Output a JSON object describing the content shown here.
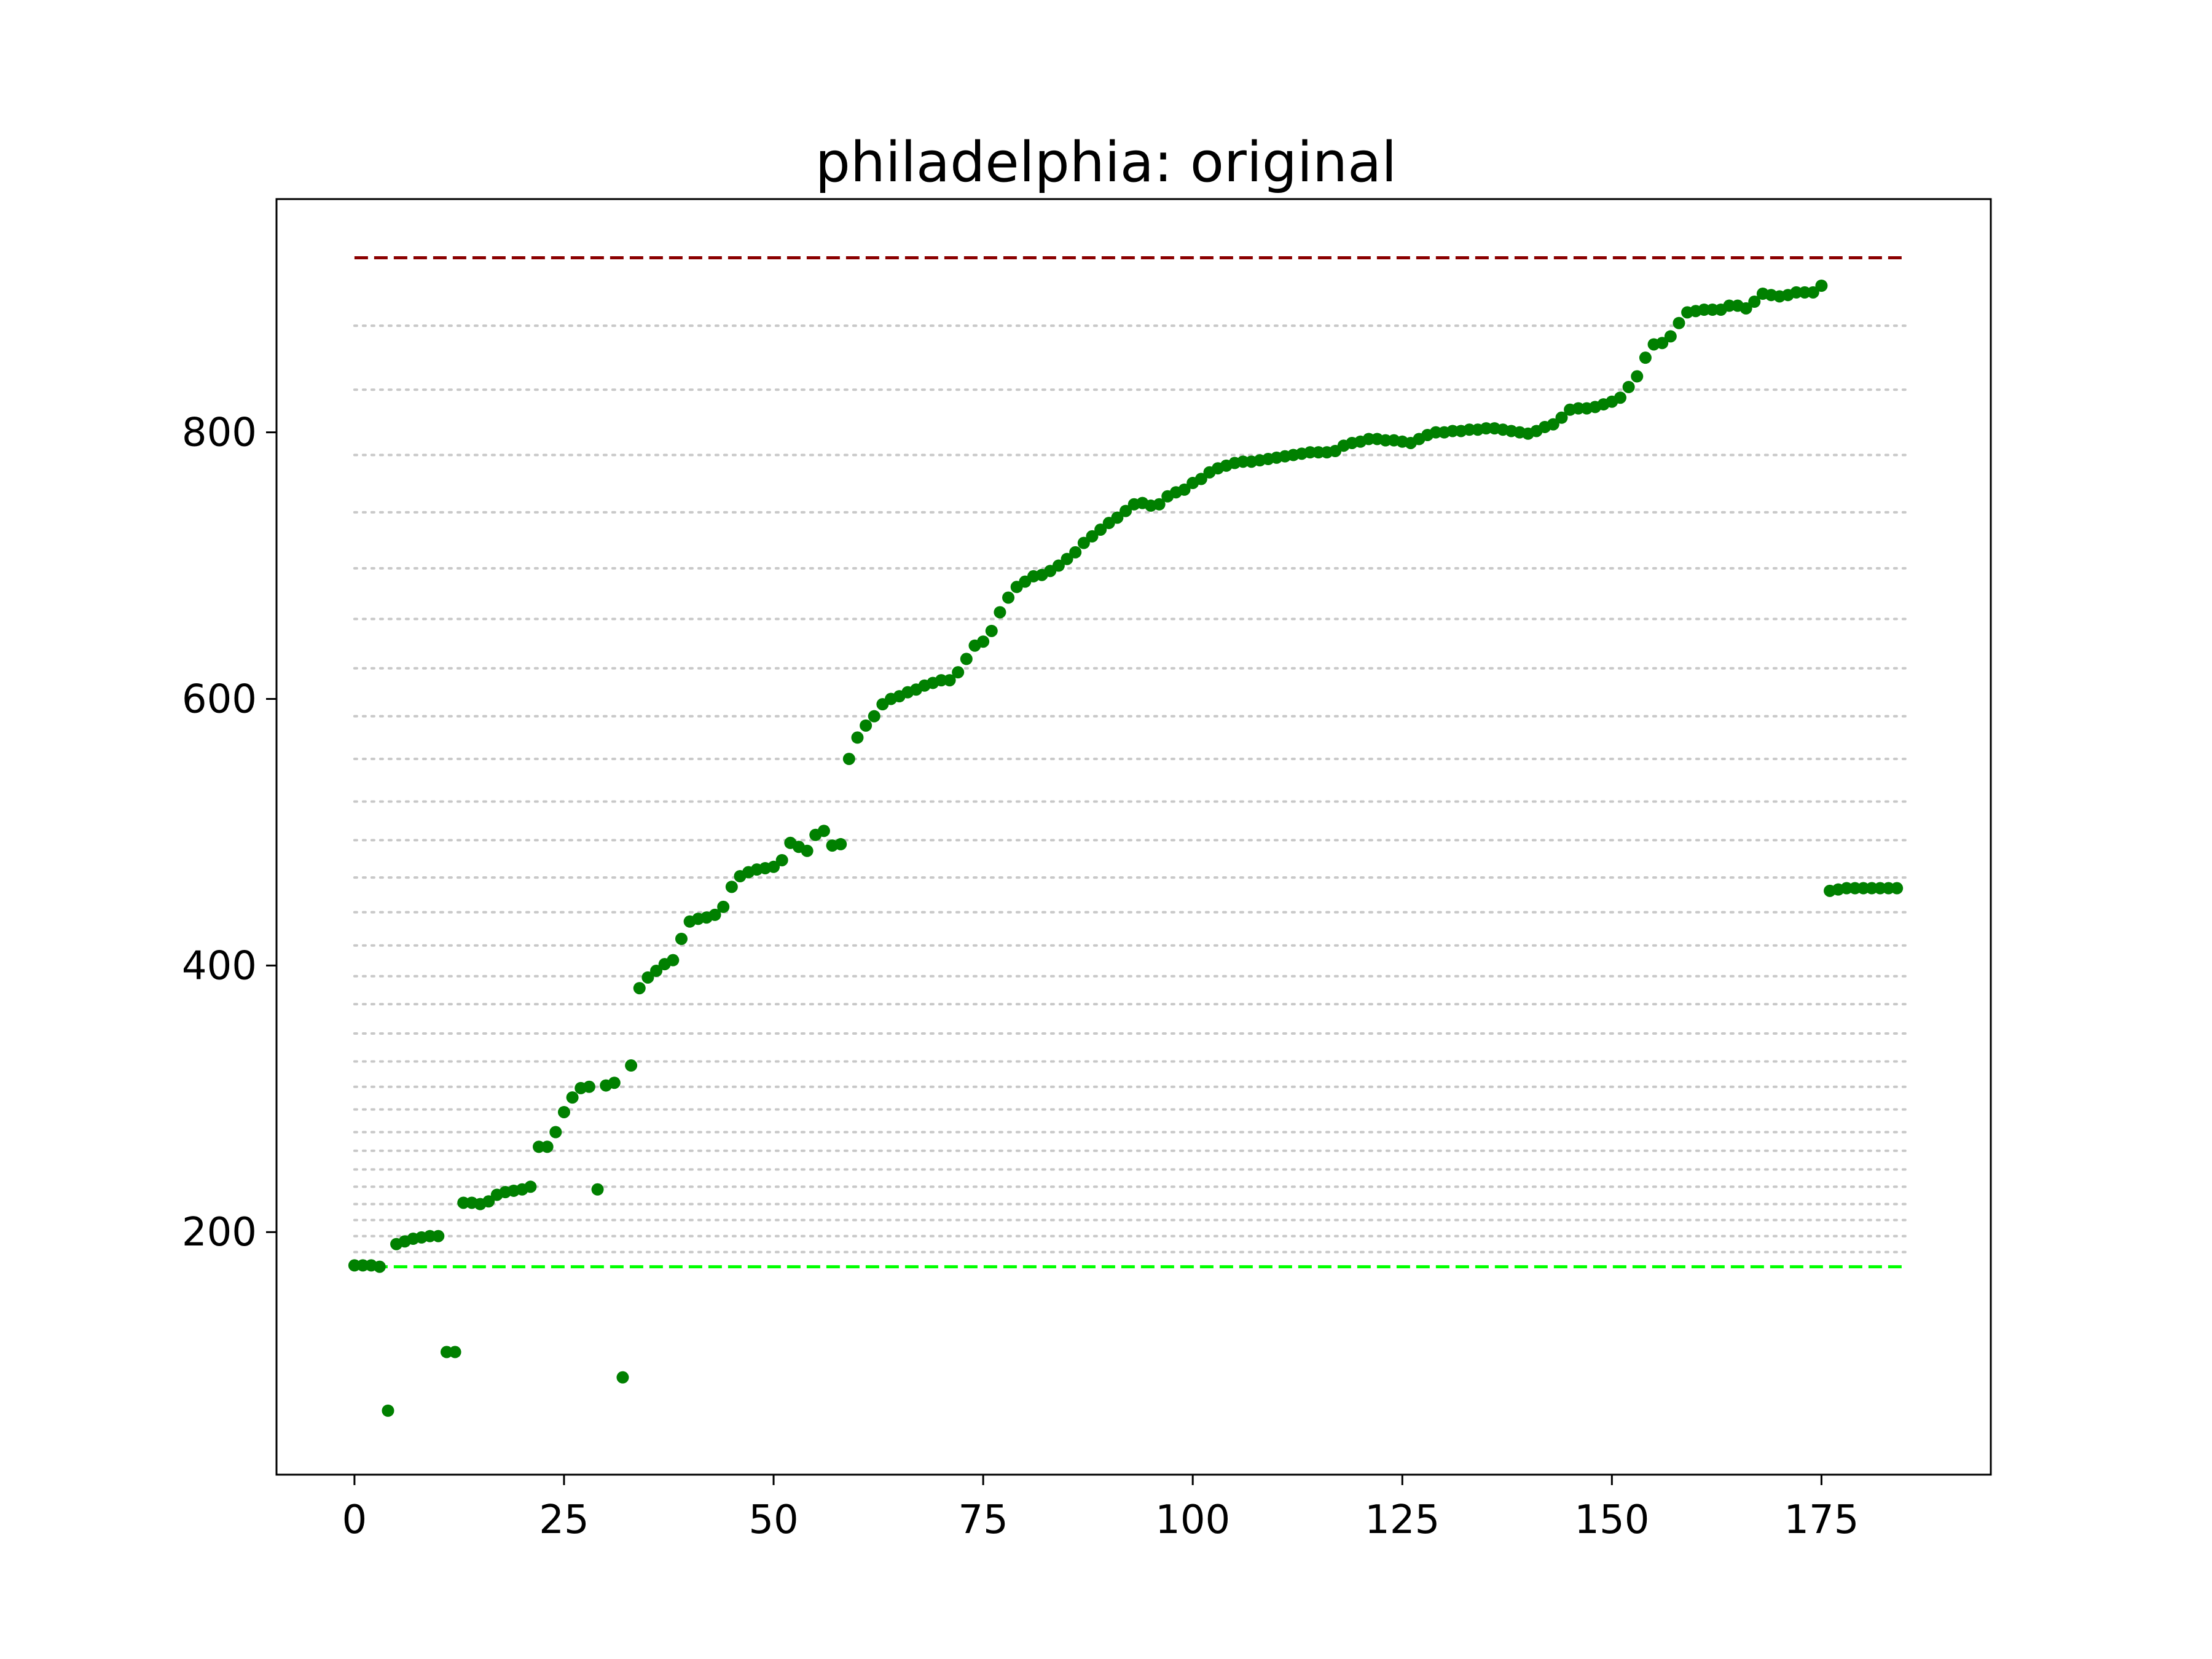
{
  "chart_data": {
    "type": "scatter",
    "title": "philadelphia: original",
    "xlabel": "",
    "ylabel": "",
    "xlim": [
      -9.3,
      195.2
    ],
    "ylim": [
      18,
      975
    ],
    "xticks": [
      0,
      25,
      50,
      75,
      100,
      125,
      150,
      175
    ],
    "yticks": [
      200,
      400,
      600,
      800
    ],
    "grid": false,
    "colors": {
      "points": "#008000",
      "upper_line": "#8b0000",
      "lower_line": "#00ff00",
      "guide_lines": "#c8c8c8"
    },
    "reference_lines": [
      {
        "kind": "upper",
        "y": 931,
        "x_range": [
          0,
          185
        ],
        "style": "dashed"
      },
      {
        "kind": "lower",
        "y": 174,
        "x_range": [
          0,
          185
        ],
        "style": "dashed"
      }
    ],
    "guide_lines": {
      "style": "dotted",
      "x_range": [
        0,
        185
      ],
      "y": [
        185,
        197,
        209,
        221,
        234,
        247,
        261,
        275,
        292,
        309,
        328,
        349,
        371,
        392,
        415,
        440,
        466,
        494,
        523,
        555,
        587,
        623,
        660,
        698,
        740,
        783,
        832,
        880
      ]
    },
    "series": [
      {
        "x": [
          0,
          1,
          2,
          3,
          4,
          5,
          6,
          7,
          8,
          9,
          10,
          11,
          12,
          13,
          14,
          15,
          16,
          17,
          18,
          19,
          20,
          21,
          22,
          23,
          24,
          25,
          26,
          27,
          28,
          29,
          30,
          31,
          32,
          33,
          34,
          35,
          36,
          37,
          38,
          39,
          40,
          41,
          42,
          43,
          44,
          45,
          46,
          47,
          48,
          49,
          50,
          51,
          52,
          53,
          54,
          55,
          56,
          57,
          58,
          59,
          60,
          61,
          62,
          63,
          64,
          65,
          66,
          67,
          68,
          69,
          70,
          71,
          72,
          73,
          74,
          75,
          76,
          77,
          78,
          79,
          80,
          81,
          82,
          83,
          84,
          85,
          86,
          87,
          88,
          89,
          90,
          91,
          92,
          93,
          94,
          95,
          96,
          97,
          98,
          99,
          100,
          101,
          102,
          103,
          104,
          105,
          106,
          107,
          108,
          109,
          110,
          111,
          112,
          113,
          114,
          115,
          116,
          117,
          118,
          119,
          120,
          121,
          122,
          123,
          124,
          125,
          126,
          127,
          128,
          129,
          130,
          131,
          132,
          133,
          134,
          135,
          136,
          137,
          138,
          139,
          140,
          141,
          142,
          143,
          144,
          145,
          146,
          147,
          148,
          149,
          150,
          151,
          152,
          153,
          154,
          155,
          156,
          157,
          158,
          159,
          160,
          161,
          162,
          163,
          164,
          165,
          166,
          167,
          168,
          169,
          170,
          171,
          172,
          173,
          174,
          175,
          176,
          177,
          178,
          179,
          180,
          181,
          182,
          183,
          184
        ],
        "y": [
          175,
          175,
          175,
          174,
          66,
          191,
          193,
          195,
          196,
          197,
          197,
          110,
          110,
          222,
          222,
          221,
          223,
          228,
          230,
          231,
          232,
          234,
          264,
          264,
          275,
          290,
          301,
          308,
          309,
          232,
          310,
          312,
          91,
          325,
          383,
          391,
          396,
          401,
          404,
          420,
          433,
          435,
          436,
          438,
          444,
          459,
          467,
          470,
          472,
          473,
          474,
          479,
          492,
          489,
          486,
          498,
          501,
          490,
          491,
          555,
          571,
          580,
          587,
          596,
          600,
          602,
          605,
          607,
          610,
          612,
          614,
          614,
          620,
          630,
          640,
          643,
          651,
          665,
          676,
          684,
          688,
          692,
          693,
          696,
          700,
          705,
          710,
          717,
          722,
          727,
          732,
          736,
          741,
          746,
          747,
          745,
          746,
          752,
          755,
          757,
          762,
          765,
          770,
          773,
          775,
          777,
          778,
          778,
          779,
          780,
          781,
          782,
          783,
          784,
          785,
          785,
          785,
          786,
          790,
          792,
          793,
          795,
          795,
          794,
          794,
          793,
          792,
          795,
          798,
          800,
          800,
          801,
          801,
          802,
          802,
          803,
          803,
          802,
          801,
          800,
          799,
          801,
          804,
          806,
          811,
          817,
          818,
          818,
          819,
          821,
          823,
          826,
          834,
          842,
          856,
          866,
          867,
          872,
          882,
          890,
          891,
          892,
          892,
          892,
          895,
          895,
          893,
          898,
          904,
          903,
          902,
          903,
          905,
          905,
          905,
          910,
          456,
          457,
          458,
          458,
          458,
          458,
          458,
          458,
          458
        ]
      }
    ]
  }
}
